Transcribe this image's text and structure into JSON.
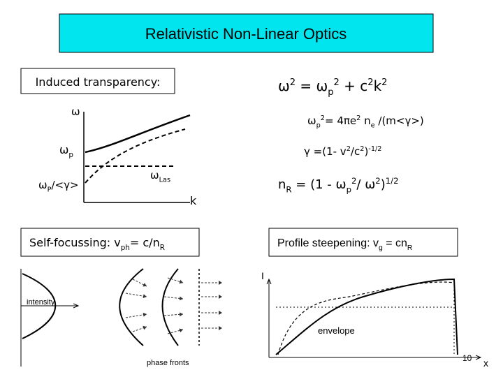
{
  "title": "Relativistic Non-Linear Optics",
  "induced_transparency": {
    "label": "Induced transparency:",
    "diagram": {
      "y_axis": "ω",
      "omega_p": [
        "ω",
        "p"
      ],
      "omega_p_gamma": [
        "ω",
        "P",
        "/<γ>"
      ],
      "omega_las": [
        "ω",
        "Las"
      ],
      "x_axis": "k"
    }
  },
  "equations": [
    [
      "ω",
      "2",
      " = ω",
      "p",
      "2",
      " + c",
      "2",
      "k",
      "2"
    ],
    [
      "ω",
      "p",
      "2",
      "= 4πe",
      "2",
      " n",
      "e",
      " /(m<γ>)"
    ],
    [
      "γ",
      " =(1- v",
      "2",
      "/c",
      "2",
      ")",
      "-1/2"
    ],
    [
      "n",
      "R",
      " = (1 - ω",
      "p",
      "2",
      "/ ω",
      "2",
      ")",
      "1/2"
    ]
  ],
  "self_focussing": {
    "label": [
      "Self-focussing: v",
      "ph",
      "= c/n",
      "R"
    ],
    "intensity": "intensity",
    "phase_fronts": "phase fronts"
  },
  "profile_steepening": {
    "label": [
      "Profile steepening:  v",
      "g",
      " = cn",
      "R"
    ],
    "y_axis": "I",
    "envelope": "envelope",
    "x_axis": "x"
  },
  "page_number": "10"
}
